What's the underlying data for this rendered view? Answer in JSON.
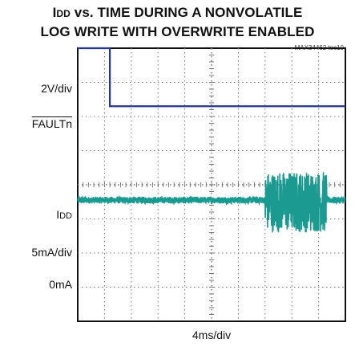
{
  "chart_data": {
    "type": "line",
    "title": {
      "line1_prefix": "I",
      "line1_sub": "DD",
      "line1_rest": " vs. TIME DURING A NONVOLATILE",
      "line2": "LOG WRITE WITH OVERWRITE ENABLED"
    },
    "figure_tag": "MAX34462 toc10",
    "xlabel": "4ms/div",
    "grid": true,
    "divisions": {
      "x": 10,
      "y": 8
    },
    "channel_labels": {
      "fault_scale": "2V/div",
      "fault_name": "FAULTn",
      "idd_prefix": "I",
      "idd_sub": "DD",
      "idd_scale": "5mA/div",
      "idd_zero": "0mA"
    },
    "series": [
      {
        "name": "FAULTn",
        "color": "#27358f",
        "unit": "div",
        "x": [
          0,
          1.2,
          1.2,
          10
        ],
        "y": [
          8.0,
          8.0,
          6.3,
          6.3
        ]
      },
      {
        "name": "IDD",
        "color": "#1a9a90",
        "unit": "div",
        "baseline": 3.55,
        "noise_div": 0.1,
        "burst": {
          "x_start": 7.0,
          "x_end": 9.3,
          "low": 2.6,
          "high": 4.4
        }
      }
    ]
  }
}
